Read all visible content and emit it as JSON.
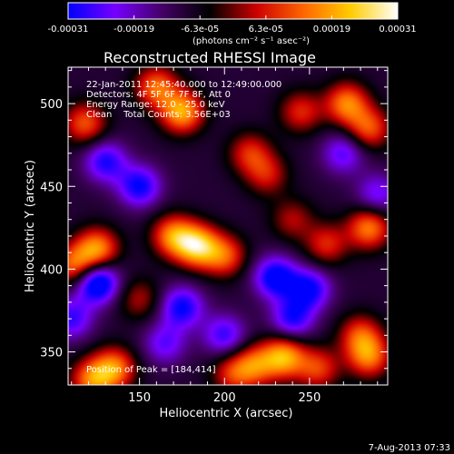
{
  "chart_data": {
    "type": "heatmap",
    "title": "Reconstructed RHESSI Image",
    "xlabel": "Heliocentric X (arcsec)",
    "ylabel": "Heliocentric Y (arcsec)",
    "xlim": [
      108,
      296
    ],
    "ylim": [
      330,
      522
    ],
    "x_ticks": [
      150,
      200,
      250
    ],
    "x_tick_labels": [
      "150",
      "200",
      "250"
    ],
    "y_ticks": [
      350,
      400,
      450,
      500
    ],
    "y_tick_labels": [
      "350",
      "400",
      "450",
      "500"
    ],
    "colorbar": {
      "min": -0.00031,
      "max": 0.00031,
      "tick_labels": [
        "-0.00031",
        "-0.00019",
        "-6.3e-05",
        "6.3e-05",
        "0.00019",
        "0.00031"
      ],
      "unit_label": "(photons cm⁻² s⁻¹ asec⁻²)",
      "colors": [
        "#0000ff",
        "#7700ff",
        "#440066",
        "#000000",
        "#cc0000",
        "#ff6600",
        "#ffcc00",
        "#ffffff"
      ]
    },
    "annotations": {
      "time_range": "22-Jan-2011 12:45:40.000 to 12:49:00.000",
      "detectors": "Detectors: 4F 5F 6F 7F 8F, Att 0",
      "energy": "Energy Range: 12.0 - 25.0 keV",
      "clean": "Clean    Total Counts: 3.56E+03",
      "peak": "Position of Peak = [184,414]"
    },
    "footer_date": "7-Aug-2013 07:33",
    "sources": [
      {
        "x": 184,
        "y": 414,
        "value": 0.00031
      },
      {
        "x": 170,
        "y": 420,
        "value": 0.00024
      },
      {
        "x": 200,
        "y": 408,
        "value": 0.0002
      },
      {
        "x": 125,
        "y": 412,
        "value": 0.00026
      },
      {
        "x": 112,
        "y": 402,
        "value": 0.00022
      },
      {
        "x": 235,
        "y": 347,
        "value": 0.00028
      },
      {
        "x": 218,
        "y": 342,
        "value": 0.0002
      },
      {
        "x": 135,
        "y": 340,
        "value": 0.00024
      },
      {
        "x": 122,
        "y": 333,
        "value": 0.00022
      },
      {
        "x": 205,
        "y": 337,
        "value": 0.00016
      },
      {
        "x": 255,
        "y": 340,
        "value": 0.00018
      },
      {
        "x": 285,
        "y": 347,
        "value": 0.00022
      },
      {
        "x": 280,
        "y": 360,
        "value": 0.00018
      },
      {
        "x": 175,
        "y": 495,
        "value": 0.00028
      },
      {
        "x": 160,
        "y": 510,
        "value": 0.00022
      },
      {
        "x": 118,
        "y": 488,
        "value": 0.0002
      },
      {
        "x": 272,
        "y": 500,
        "value": 0.00024
      },
      {
        "x": 285,
        "y": 485,
        "value": 0.0002
      },
      {
        "x": 245,
        "y": 495,
        "value": 0.00016
      },
      {
        "x": 215,
        "y": 470,
        "value": 0.00016
      },
      {
        "x": 225,
        "y": 457,
        "value": 0.00014
      },
      {
        "x": 285,
        "y": 425,
        "value": 0.00024
      },
      {
        "x": 260,
        "y": 415,
        "value": 0.00016
      },
      {
        "x": 240,
        "y": 430,
        "value": 0.00012
      },
      {
        "x": 150,
        "y": 382,
        "value": 0.00012
      },
      {
        "x": 110,
        "y": 370,
        "value": -0.00018
      },
      {
        "x": 125,
        "y": 392,
        "value": -0.00031
      },
      {
        "x": 175,
        "y": 377,
        "value": -0.00022
      },
      {
        "x": 230,
        "y": 395,
        "value": -0.00025
      },
      {
        "x": 250,
        "y": 388,
        "value": -0.00022
      },
      {
        "x": 150,
        "y": 450,
        "value": -0.00022
      },
      {
        "x": 130,
        "y": 465,
        "value": -0.0002
      },
      {
        "x": 290,
        "y": 445,
        "value": -0.00015
      },
      {
        "x": 200,
        "y": 360,
        "value": -0.00018
      },
      {
        "x": 240,
        "y": 370,
        "value": -0.0002
      },
      {
        "x": 165,
        "y": 355,
        "value": -0.00015
      },
      {
        "x": 270,
        "y": 470,
        "value": -0.00016
      }
    ]
  }
}
